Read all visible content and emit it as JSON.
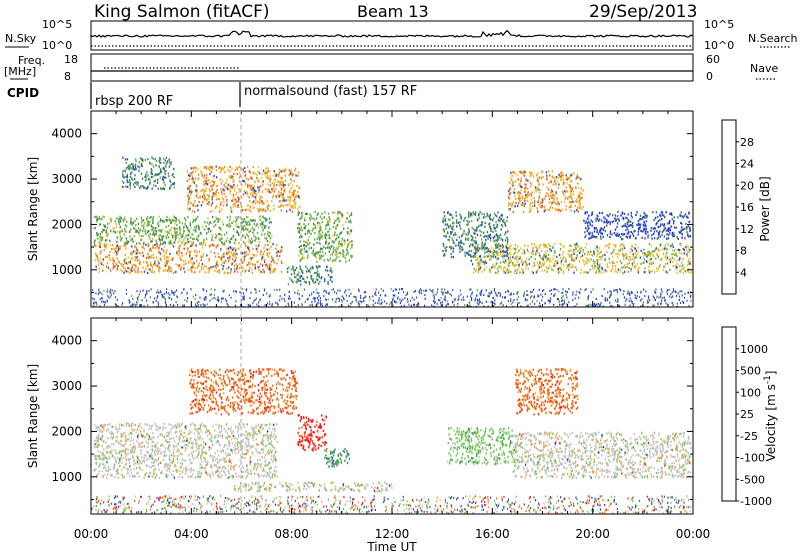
{
  "header": {
    "station": "King Salmon (fitACF)",
    "beam": "Beam 13",
    "date": "29/Sep/2013"
  },
  "noise_panel": {
    "left_label": "N.Sky",
    "right_label": "N.Search",
    "left_ticks": [
      "10^5",
      "10^0"
    ],
    "right_ticks": [
      "10^5",
      "10^0"
    ]
  },
  "freq_panel": {
    "left_label_1": "Freq.",
    "left_label_2": "[MHz]",
    "right_label": "Nave",
    "left_ticks": [
      "18",
      "8"
    ],
    "right_ticks": [
      "60",
      "0"
    ]
  },
  "cpid": {
    "label": "CPID",
    "programs": [
      {
        "name": "rbsp 200 RF",
        "start": "00:00"
      },
      {
        "name": "normalsound (fast) 157 RF",
        "start": "06:00"
      }
    ]
  },
  "chart_data": [
    {
      "type": "heatmap",
      "quantity": "Power",
      "ylabel": "Slant Range [km]",
      "ylim": [
        180,
        4500
      ],
      "yticks": [
        "1000",
        "2000",
        "3000",
        "4000"
      ],
      "xlim": [
        "00:00",
        "24:00"
      ],
      "colorbar": {
        "label": "Power [dB]",
        "ticks": [
          "4",
          "8",
          "12",
          "16",
          "20",
          "24",
          "28"
        ],
        "colors": [
          "#1f1fff",
          "#2f4fb8",
          "#3a7f56",
          "#5daf4a",
          "#e8c42a",
          "#f39a1e",
          "#f0621a",
          "#ff1010"
        ],
        "range": [
          0,
          30
        ]
      },
      "regions": [
        {
          "t": [
            0.1,
            7.6
          ],
          "range_km": [
            950,
            1600
          ],
          "level": 20
        },
        {
          "t": [
            0.1,
            7.2
          ],
          "range_km": [
            1600,
            2200
          ],
          "level": 12
        },
        {
          "t": [
            3.8,
            8.3
          ],
          "range_km": [
            2300,
            3300
          ],
          "level": 22
        },
        {
          "t": [
            1.2,
            3.3
          ],
          "range_km": [
            2800,
            3500
          ],
          "level": 8
        },
        {
          "t": [
            8.2,
            10.4
          ],
          "range_km": [
            1200,
            2300
          ],
          "level": 14
        },
        {
          "t": [
            7.8,
            9.6
          ],
          "range_km": [
            700,
            1100
          ],
          "level": 10
        },
        {
          "t": [
            15.1,
            23.9
          ],
          "range_km": [
            950,
            1600
          ],
          "level": 16
        },
        {
          "t": [
            16.6,
            19.6
          ],
          "range_km": [
            2300,
            3200
          ],
          "level": 21
        },
        {
          "t": [
            14.0,
            16.6
          ],
          "range_km": [
            1300,
            2300
          ],
          "level": 10
        },
        {
          "t": [
            19.6,
            23.9
          ],
          "range_km": [
            1700,
            2300
          ],
          "level": 6
        }
      ]
    },
    {
      "type": "heatmap",
      "quantity": "Velocity",
      "ylabel": "Slant Range [km]",
      "ylim": [
        180,
        4500
      ],
      "yticks": [
        "1000",
        "2000",
        "3000",
        "4000"
      ],
      "xlim": [
        "00:00",
        "24:00"
      ],
      "xticks": [
        "00:00",
        "04:00",
        "08:00",
        "12:00",
        "16:00",
        "20:00",
        "00:00"
      ],
      "xlabel": "Time UT",
      "colorbar": {
        "label": "Velocity [m s-1]",
        "label_main": "Velocity [m s",
        "label_sup": "-1",
        "label_end": "]",
        "ticks": [
          "1000",
          "500",
          "100",
          "25",
          "-25",
          "-100",
          "-500",
          "-1000"
        ],
        "colors": [
          "#2030d0",
          "#3558a0",
          "#3a8f5a",
          "#6cc84a",
          "#c0c0c0",
          "#f0a020",
          "#f06010",
          "#ff1010"
        ]
      },
      "regions": [
        {
          "t": [
            0.1,
            7.4
          ],
          "range_km": [
            1000,
            2200
          ],
          "velocity": 0
        },
        {
          "t": [
            3.9,
            8.2
          ],
          "range_km": [
            2400,
            3400
          ],
          "velocity": -300
        },
        {
          "t": [
            8.2,
            9.4
          ],
          "range_km": [
            1600,
            2400
          ],
          "velocity": -600
        },
        {
          "t": [
            9.2,
            10.3
          ],
          "range_km": [
            1250,
            1650
          ],
          "velocity": 120
        },
        {
          "t": [
            14.2,
            16.8
          ],
          "range_km": [
            1300,
            2100
          ],
          "velocity": 90
        },
        {
          "t": [
            16.8,
            23.9
          ],
          "range_km": [
            1000,
            2000
          ],
          "velocity": 0
        },
        {
          "t": [
            16.9,
            19.4
          ],
          "range_km": [
            2400,
            3400
          ],
          "velocity": -350
        },
        {
          "t": [
            5.6,
            12.0
          ],
          "range_km": [
            700,
            900
          ],
          "velocity": 0
        }
      ]
    }
  ]
}
